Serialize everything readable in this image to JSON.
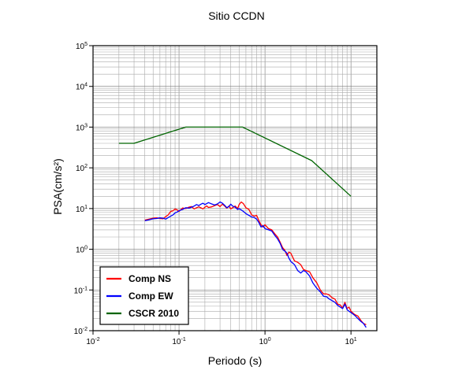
{
  "chart_data": {
    "type": "line",
    "title": "Sitio CCDN",
    "xlabel": "Periodo (s)",
    "ylabel": "PSA(cm/s²)",
    "xscale": "log",
    "yscale": "log",
    "xlim": [
      0.01,
      20
    ],
    "ylim": [
      0.01,
      100000
    ],
    "grid": true,
    "legend_position": "bottom-left",
    "x_ticks": [
      {
        "base": "10",
        "exp": "-2"
      },
      {
        "base": "10",
        "exp": "-1"
      },
      {
        "base": "10",
        "exp": "0"
      },
      {
        "base": "10",
        "exp": "1"
      }
    ],
    "y_ticks": [
      {
        "base": "10",
        "exp": "-2"
      },
      {
        "base": "10",
        "exp": "-1"
      },
      {
        "base": "10",
        "exp": "0"
      },
      {
        "base": "10",
        "exp": "1"
      },
      {
        "base": "10",
        "exp": "2"
      },
      {
        "base": "10",
        "exp": "3"
      },
      {
        "base": "10",
        "exp": "4"
      },
      {
        "base": "10",
        "exp": "5"
      }
    ],
    "series": [
      {
        "name": "Comp NS",
        "color": "#ff0000",
        "x": [
          0.04,
          0.045,
          0.05,
          0.055,
          0.06,
          0.065,
          0.07,
          0.075,
          0.08,
          0.085,
          0.09,
          0.095,
          0.1,
          0.11,
          0.12,
          0.13,
          0.14,
          0.15,
          0.16,
          0.17,
          0.18,
          0.19,
          0.2,
          0.21,
          0.22,
          0.24,
          0.26,
          0.28,
          0.3,
          0.32,
          0.34,
          0.36,
          0.38,
          0.4,
          0.42,
          0.45,
          0.48,
          0.5,
          0.53,
          0.56,
          0.6,
          0.65,
          0.7,
          0.75,
          0.8,
          0.85,
          0.9,
          0.95,
          1.0,
          1.1,
          1.2,
          1.3,
          1.4,
          1.5,
          1.6,
          1.7,
          1.8,
          1.9,
          2.0,
          2.2,
          2.4,
          2.6,
          2.8,
          3.0,
          3.3,
          3.6,
          4.0,
          4.4,
          4.8,
          5.2,
          5.6,
          6.0,
          6.5,
          7.0,
          7.5,
          8.0,
          8.5,
          9.0,
          9.5,
          10,
          11,
          12,
          13,
          14,
          15
        ],
        "y": [
          5.2,
          5.5,
          5.8,
          5.9,
          5.7,
          5.6,
          6.3,
          7.0,
          8.5,
          8.8,
          9.8,
          9.3,
          8.5,
          10.3,
          10.0,
          10.8,
          11.2,
          9.8,
          10.5,
          11.0,
          10.4,
          9.8,
          10.8,
          11.6,
          10.6,
          11.0,
          11.8,
          12.5,
          11.2,
          12.8,
          11.5,
          10.2,
          11.5,
          9.8,
          10.5,
          11.5,
          10.0,
          12.5,
          14.5,
          13.2,
          10.5,
          9.5,
          7.0,
          6.5,
          6.8,
          5.0,
          4.0,
          3.5,
          4.0,
          3.2,
          3.0,
          2.4,
          2.0,
          1.5,
          1.1,
          0.95,
          0.7,
          0.85,
          0.8,
          0.52,
          0.48,
          0.42,
          0.32,
          0.3,
          0.28,
          0.2,
          0.15,
          0.1,
          0.08,
          0.08,
          0.075,
          0.065,
          0.06,
          0.045,
          0.043,
          0.036,
          0.05,
          0.035,
          0.038,
          0.03,
          0.025,
          0.023,
          0.018,
          0.015,
          0.014
        ]
      },
      {
        "name": "Comp EW",
        "color": "#0000ff",
        "x": [
          0.04,
          0.045,
          0.05,
          0.055,
          0.06,
          0.065,
          0.07,
          0.075,
          0.08,
          0.085,
          0.09,
          0.095,
          0.1,
          0.11,
          0.12,
          0.13,
          0.14,
          0.15,
          0.16,
          0.17,
          0.18,
          0.19,
          0.2,
          0.21,
          0.22,
          0.24,
          0.26,
          0.28,
          0.3,
          0.32,
          0.34,
          0.36,
          0.38,
          0.4,
          0.42,
          0.45,
          0.48,
          0.5,
          0.53,
          0.56,
          0.6,
          0.65,
          0.7,
          0.75,
          0.8,
          0.85,
          0.9,
          0.95,
          1.0,
          1.1,
          1.2,
          1.3,
          1.4,
          1.5,
          1.6,
          1.7,
          1.8,
          1.9,
          2.0,
          2.2,
          2.4,
          2.6,
          2.8,
          3.0,
          3.3,
          3.6,
          4.0,
          4.4,
          4.8,
          5.2,
          5.6,
          6.0,
          6.5,
          7.0,
          7.5,
          8.0,
          8.5,
          9.0,
          9.5,
          10,
          11,
          12,
          13,
          14,
          15
        ],
        "y": [
          5.0,
          5.3,
          5.6,
          5.7,
          5.9,
          5.8,
          5.5,
          6.0,
          6.5,
          7.0,
          7.8,
          8.2,
          8.8,
          9.5,
          10.5,
          10.2,
          10.8,
          11.5,
          12.5,
          11.8,
          12.8,
          13.5,
          12.5,
          13.2,
          14.0,
          13.0,
          12.2,
          13.0,
          14.5,
          13.5,
          12.0,
          10.5,
          11.2,
          12.8,
          11.5,
          10.8,
          9.5,
          10.0,
          9.2,
          8.5,
          7.5,
          6.8,
          6.2,
          6.0,
          5.5,
          4.5,
          3.5,
          3.8,
          3.2,
          3.0,
          2.8,
          2.2,
          1.8,
          1.4,
          1.0,
          0.9,
          0.8,
          0.6,
          0.5,
          0.42,
          0.3,
          0.26,
          0.3,
          0.28,
          0.22,
          0.15,
          0.11,
          0.09,
          0.07,
          0.068,
          0.06,
          0.055,
          0.05,
          0.042,
          0.038,
          0.035,
          0.045,
          0.033,
          0.03,
          0.028,
          0.024,
          0.02,
          0.017,
          0.015,
          0.012
        ]
      },
      {
        "name": "CSCR 2010",
        "color": "#006400",
        "x": [
          0.02,
          0.03,
          0.12,
          0.55,
          3.5,
          10
        ],
        "y": [
          400,
          400,
          1000,
          1000,
          150,
          20
        ]
      }
    ]
  }
}
